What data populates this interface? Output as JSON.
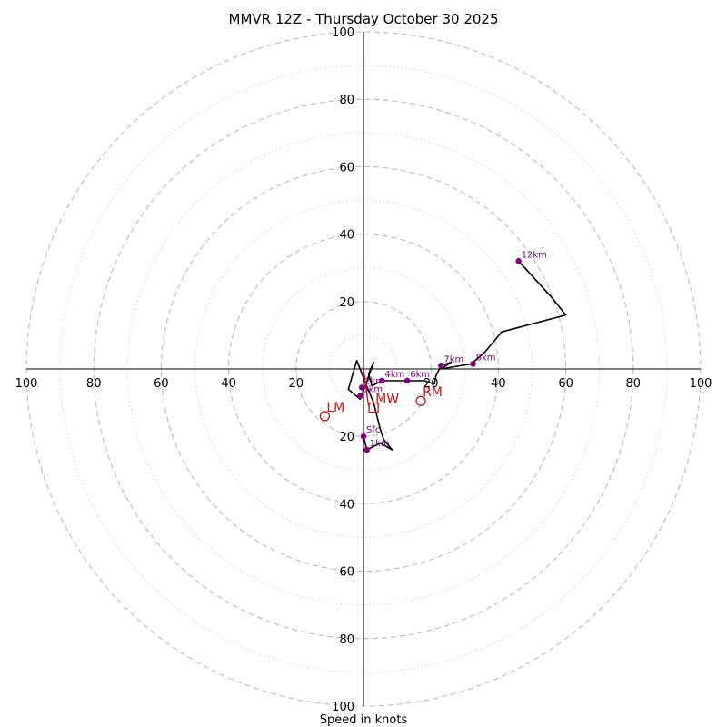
{
  "chart_data": {
    "type": "hodograph",
    "title": "MMVR 12Z - Thursday October 30 2025",
    "xlabel": "Speed in knots",
    "range": [
      -100,
      100
    ],
    "ring_step_major": 20,
    "ring_step_minor": 10,
    "tick_labels": {
      "x": [
        "100",
        "80",
        "60",
        "40",
        "20",
        "20",
        "40",
        "60",
        "80",
        "100"
      ],
      "x_values": [
        -100,
        -80,
        -60,
        -40,
        -20,
        20,
        40,
        60,
        80,
        100
      ],
      "y": [
        "100",
        "80",
        "60",
        "40",
        "20",
        "20",
        "40",
        "60",
        "80",
        "100"
      ],
      "y_values": [
        100,
        80,
        60,
        40,
        20,
        -20,
        -40,
        -60,
        -80,
        -100
      ]
    },
    "hodograph_line": [
      [
        0,
        -20
      ],
      [
        1,
        -24
      ],
      [
        5,
        -22
      ],
      [
        8.5,
        -24
      ],
      [
        6,
        -21
      ],
      [
        5,
        -18
      ],
      [
        3,
        -10
      ],
      [
        0.5,
        -4
      ],
      [
        -2,
        2.5
      ],
      [
        -4.5,
        -6
      ],
      [
        -1,
        -9
      ],
      [
        0.5,
        -5
      ],
      [
        3,
        2
      ],
      [
        1.5,
        -1.5
      ],
      [
        2.5,
        -5
      ],
      [
        5.5,
        -3.5
      ],
      [
        13,
        -3.5
      ],
      [
        18,
        -3.5
      ],
      [
        21,
        -4.5
      ],
      [
        21.5,
        -2
      ],
      [
        23,
        1
      ],
      [
        26,
        2
      ],
      [
        23,
        0
      ],
      [
        32,
        1.5
      ],
      [
        36,
        5
      ],
      [
        41,
        11
      ],
      [
        60,
        16
      ],
      [
        56,
        21
      ],
      [
        46,
        32
      ]
    ],
    "line_color": "#000000",
    "height_points": [
      {
        "label": "Sfc",
        "x": 0,
        "y": -20
      },
      {
        "label": "1km",
        "x": 1,
        "y": -24
      },
      {
        "label": "3km",
        "x": -1,
        "y": -8
      },
      {
        "label": "2km",
        "x": -0.5,
        "y": -5.5
      },
      {
        "label": "4km",
        "x": 5.5,
        "y": -3.5
      },
      {
        "label": "6km",
        "x": 13,
        "y": -3.5
      },
      {
        "label": "7km",
        "x": 23,
        "y": 1
      },
      {
        "label": "8km",
        "x": 32.5,
        "y": 1.5
      },
      {
        "label": "12km",
        "x": 46,
        "y": 32
      }
    ],
    "point_color": "#800080",
    "motion_markers": [
      {
        "label": "RM",
        "x": 17,
        "y": -9.5,
        "shape": "circle"
      },
      {
        "label": "LM",
        "x": -11.5,
        "y": -14,
        "shape": "circle"
      },
      {
        "label": "MW",
        "x": 3,
        "y": -11.5,
        "shape": "square"
      }
    ],
    "shear_vector": {
      "x1": 1.5,
      "y1": -11,
      "x2": 0,
      "y2": 0
    },
    "marker_color": "#cc1111"
  }
}
